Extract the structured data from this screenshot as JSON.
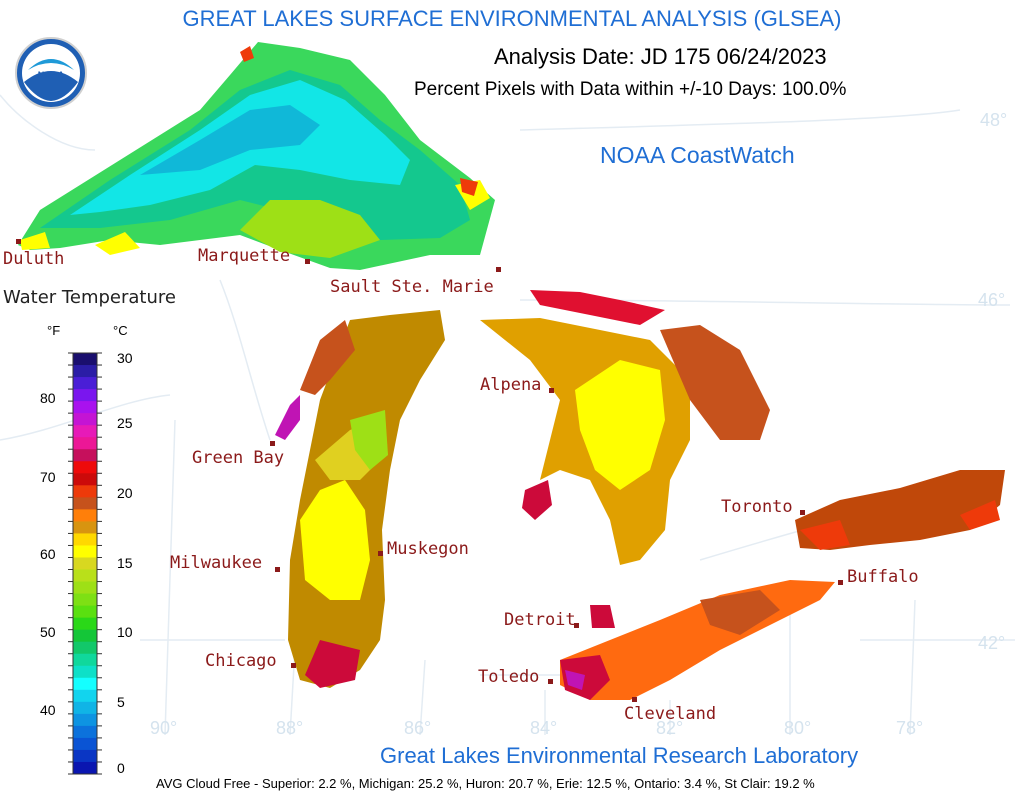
{
  "header": {
    "title": "GREAT LAKES SURFACE ENVIRONMENTAL ANALYSIS (GLSEA)",
    "analysis_date": "Analysis Date:  JD 175 06/24/2023",
    "percent_pixels": "Percent Pixels with Data within +/-10 Days: 100.0%",
    "source": "NOAA CoastWatch",
    "logo_text": "NOAA"
  },
  "legend": {
    "title": "Water Temperature",
    "unit_f": "°F",
    "unit_c": "°C",
    "f_ticks": [
      "80",
      "70",
      "60",
      "50",
      "40"
    ],
    "c_ticks": [
      "30",
      "25",
      "20",
      "15",
      "10",
      "5",
      "0"
    ],
    "colors": [
      "#1a0f6e",
      "#2b1da6",
      "#4a1ed6",
      "#7a16ee",
      "#a912ee",
      "#c414d4",
      "#e71ab8",
      "#ec1796",
      "#c6105c",
      "#ee0a0a",
      "#cc0a0a",
      "#ee3a0a",
      "#c6521c",
      "#ff7f0a",
      "#d89410",
      "#ffd800",
      "#ffff00",
      "#d8d820",
      "#b9e01a",
      "#9ee016",
      "#7ee014",
      "#5ae010",
      "#2ad818",
      "#14c638",
      "#12c86a",
      "#10d89c",
      "#0ee0c8",
      "#14ffff",
      "#12d4ee",
      "#10b4e6",
      "#0e94e2",
      "#0c72dc",
      "#0a54d4",
      "#0a36c4",
      "#0a16b0"
    ]
  },
  "cities": [
    {
      "name": "Duluth"
    },
    {
      "name": "Marquette"
    },
    {
      "name": "Sault Ste. Marie"
    },
    {
      "name": "Alpena"
    },
    {
      "name": "Green Bay"
    },
    {
      "name": "Milwaukee"
    },
    {
      "name": "Muskegon"
    },
    {
      "name": "Chicago"
    },
    {
      "name": "Detroit"
    },
    {
      "name": "Toledo"
    },
    {
      "name": "Cleveland"
    },
    {
      "name": "Toronto"
    },
    {
      "name": "Buffalo"
    }
  ],
  "graticule": {
    "lat_labels": [
      "48°",
      "46°",
      "42°"
    ],
    "lon_labels": [
      "90°",
      "88°",
      "86°",
      "84°",
      "82°",
      "80°",
      "78°"
    ]
  },
  "footer": {
    "lab": "Great Lakes Environmental Research Laboratory",
    "cloud_free": "AVG Cloud Free - Superior:   2.2 %, Michigan:  25.2 %, Huron:  20.7 %, Erie: 12.5 %, Ontario:  3.4 %, St Clair: 19.2 %"
  },
  "lake_colors": {
    "superior_cold": "#12e6e6",
    "superior_mid": "#12c88e",
    "michigan_warm": "#ffff00",
    "michigan_mid": "#c08a00",
    "huron": "#e0a000",
    "erie": "#ff6a10",
    "ontario": "#c0480a",
    "hot": "#e0102c"
  }
}
